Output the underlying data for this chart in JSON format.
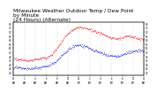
{
  "title": "Milwaukee Weather Outdoor Temp / Dew Point\nby Minute\n(24 Hours) (Alternate)",
  "title_fontsize": 4.2,
  "background_color": "#ffffff",
  "plot_bg_color": "#ffffff",
  "grid_color": "#999999",
  "temp_color": "#dd0000",
  "dew_color": "#0000cc",
  "ylim": [
    17,
    82
  ],
  "xlim": [
    0,
    1440
  ],
  "n_points": 1440,
  "seed": 7,
  "yticks": [
    20,
    25,
    30,
    35,
    40,
    45,
    50,
    55,
    60,
    65,
    70,
    75,
    80
  ],
  "temp_profile": [
    [
      0,
      37
    ],
    [
      60,
      36
    ],
    [
      120,
      35
    ],
    [
      180,
      35
    ],
    [
      240,
      36
    ],
    [
      300,
      37
    ],
    [
      360,
      38
    ],
    [
      420,
      42
    ],
    [
      480,
      50
    ],
    [
      540,
      60
    ],
    [
      600,
      68
    ],
    [
      660,
      73
    ],
    [
      720,
      76
    ],
    [
      780,
      75
    ],
    [
      840,
      73
    ],
    [
      900,
      71
    ],
    [
      960,
      68
    ],
    [
      1020,
      65
    ],
    [
      1080,
      63
    ],
    [
      1140,
      61
    ],
    [
      1200,
      63
    ],
    [
      1260,
      65
    ],
    [
      1320,
      64
    ],
    [
      1380,
      62
    ],
    [
      1440,
      60
    ]
  ],
  "dew_profile": [
    [
      0,
      27
    ],
    [
      60,
      26
    ],
    [
      120,
      25
    ],
    [
      180,
      25
    ],
    [
      240,
      26
    ],
    [
      300,
      27
    ],
    [
      360,
      28
    ],
    [
      420,
      30
    ],
    [
      480,
      35
    ],
    [
      540,
      42
    ],
    [
      600,
      48
    ],
    [
      660,
      52
    ],
    [
      720,
      54
    ],
    [
      780,
      52
    ],
    [
      840,
      50
    ],
    [
      900,
      47
    ],
    [
      960,
      44
    ],
    [
      1020,
      42
    ],
    [
      1080,
      40
    ],
    [
      1140,
      40
    ],
    [
      1200,
      42
    ],
    [
      1260,
      45
    ],
    [
      1320,
      46
    ],
    [
      1380,
      47
    ],
    [
      1440,
      47
    ]
  ]
}
